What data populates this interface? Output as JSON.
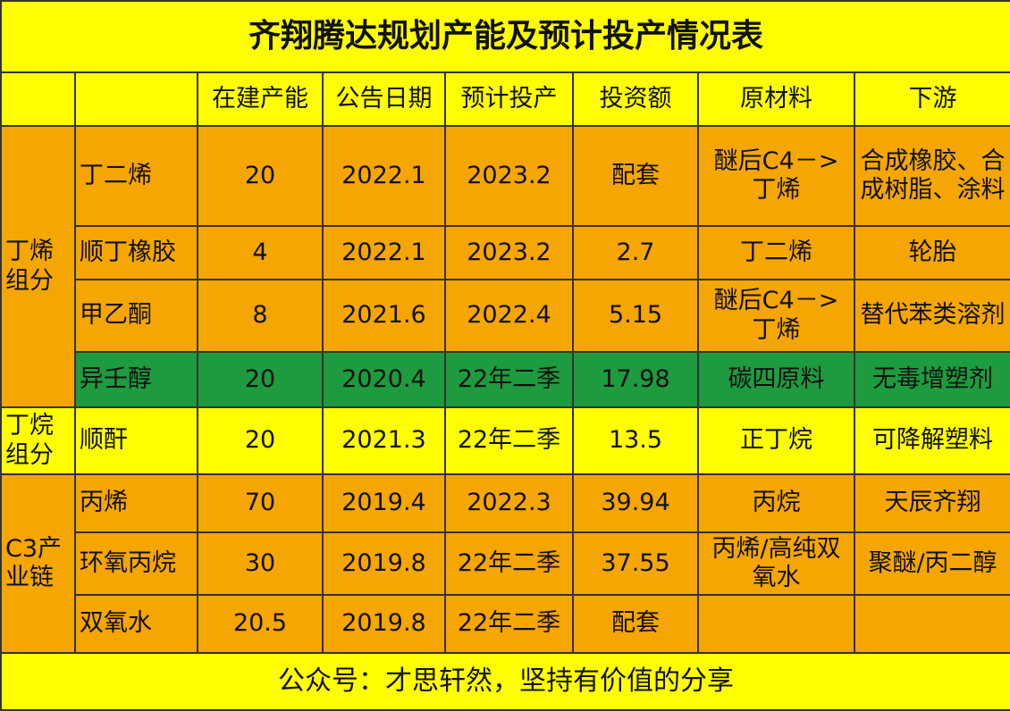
{
  "title": "齐翔腾达规划产能及预计投产情况表",
  "table": {
    "header": [
      "在建产能",
      "公告日期",
      "预计投产",
      "投资额",
      "原材料",
      "下游"
    ],
    "groups": [
      {
        "label": "丁烯组分",
        "rows": [
          [
            "丁二烯",
            "20",
            "2022.1",
            "2023.2",
            "配套",
            "醚后C4－>丁烯",
            "合成橡胶、合成树脂、涂料"
          ],
          [
            "顺丁橡胶",
            "4",
            "2022.1",
            "2023.2",
            "2.7",
            "丁二烯",
            "轮胎"
          ],
          [
            "甲乙酮",
            "8",
            "2021.6",
            "2022.4",
            "5.15",
            "醚后C4－>丁烯",
            "替代苯类溶剂"
          ],
          [
            "异壬醇",
            "20",
            "2020.4",
            "22年二季",
            "17.98",
            "碳四原料",
            "无毒增塑剂"
          ]
        ]
      },
      {
        "label": "丁烷组分",
        "rows": [
          [
            "顺酐",
            "20",
            "2021.3",
            "22年二季",
            "13.5",
            "正丁烷",
            "可降解塑料"
          ]
        ]
      },
      {
        "label": "C3产业链",
        "rows": [
          [
            "丙烯",
            "70",
            "2019.4",
            "2022.3",
            "39.94",
            "丙烷",
            "天辰齐翔"
          ],
          [
            "环氧丙烷",
            "30",
            "2019.8",
            "22年二季",
            "37.55",
            "丙烯/高纯双氧水",
            "聚醚/丙二醇"
          ],
          [
            "双氧水",
            "20.5",
            "2019.8",
            "22年二季",
            "配套",
            null,
            null
          ]
        ]
      }
    ]
  },
  "footer": "公众号：才思轩然，坚持有价值的分享"
}
